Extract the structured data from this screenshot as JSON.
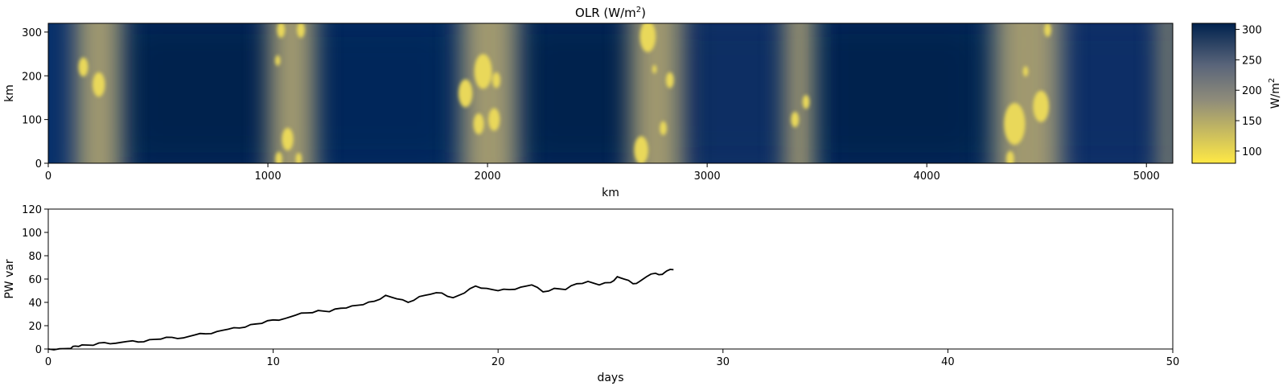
{
  "chart_data": [
    {
      "type": "heatmap",
      "title_main": "OLR (W/m",
      "title_sup": "2",
      "title_end": ")",
      "xlabel": "km",
      "ylabel": "km",
      "xlim": [
        0,
        5120
      ],
      "ylim": [
        0,
        320
      ],
      "xticks": [
        0,
        1000,
        2000,
        3000,
        4000,
        5000
      ],
      "yticks": [
        0,
        100,
        200,
        300
      ],
      "colormap": "cividis_r",
      "colorbar": {
        "label_main": "W/m",
        "label_sup": "2",
        "range": [
          80,
          310
        ],
        "ticks": [
          100,
          150,
          200,
          250,
          300
        ],
        "color_low": "#ffe945",
        "color_mid": "#7c7b78",
        "color_high": "#00224e"
      },
      "cloud_bands_km": [
        {
          "center": 230,
          "width": 230
        },
        {
          "center": 1110,
          "width": 230
        },
        {
          "center": 2010,
          "width": 280
        },
        {
          "center": 2770,
          "width": 260
        },
        {
          "center": 3420,
          "width": 140
        },
        {
          "center": 4460,
          "width": 330
        },
        {
          "center": 5100,
          "width": 80
        }
      ],
      "bright_cells": [
        {
          "x": 230,
          "y": 180,
          "r": 28
        },
        {
          "x": 160,
          "y": 220,
          "r": 22
        },
        {
          "x": 1060,
          "y": 305,
          "r": 18
        },
        {
          "x": 1150,
          "y": 305,
          "r": 18
        },
        {
          "x": 1045,
          "y": 235,
          "r": 12
        },
        {
          "x": 1090,
          "y": 55,
          "r": 26
        },
        {
          "x": 1050,
          "y": 10,
          "r": 16
        },
        {
          "x": 1140,
          "y": 10,
          "r": 14
        },
        {
          "x": 1980,
          "y": 210,
          "r": 40
        },
        {
          "x": 1900,
          "y": 160,
          "r": 32
        },
        {
          "x": 2040,
          "y": 190,
          "r": 18
        },
        {
          "x": 2030,
          "y": 100,
          "r": 26
        },
        {
          "x": 1960,
          "y": 90,
          "r": 24
        },
        {
          "x": 2730,
          "y": 290,
          "r": 36
        },
        {
          "x": 2830,
          "y": 190,
          "r": 18
        },
        {
          "x": 2760,
          "y": 215,
          "r": 10
        },
        {
          "x": 2700,
          "y": 30,
          "r": 32
        },
        {
          "x": 2800,
          "y": 80,
          "r": 16
        },
        {
          "x": 3400,
          "y": 100,
          "r": 18
        },
        {
          "x": 3450,
          "y": 140,
          "r": 16
        },
        {
          "x": 4450,
          "y": 210,
          "r": 12
        },
        {
          "x": 4550,
          "y": 305,
          "r": 16
        },
        {
          "x": 4400,
          "y": 90,
          "r": 48
        },
        {
          "x": 4520,
          "y": 130,
          "r": 36
        },
        {
          "x": 4380,
          "y": 10,
          "r": 18
        }
      ]
    },
    {
      "type": "line",
      "title": "",
      "xlabel": "days",
      "ylabel": "PW var",
      "xlim": [
        0,
        50
      ],
      "ylim": [
        0,
        120
      ],
      "xticks": [
        0,
        10,
        20,
        30,
        40,
        50
      ],
      "yticks": [
        0,
        20,
        40,
        60,
        80,
        100,
        120
      ],
      "color": "#000000",
      "series": [
        {
          "x": [
            0,
            0.5,
            1.0,
            1.2,
            1.5,
            2.0,
            2.5,
            3.0,
            3.5,
            4.0,
            4.5,
            5.0,
            5.5,
            6.0,
            6.5,
            7.0,
            7.5,
            8.0,
            8.5,
            9.0,
            9.5,
            10.0,
            10.5,
            11.0,
            11.5,
            12.0,
            12.5,
            13.0,
            13.5,
            14.0,
            14.5,
            15.0,
            15.5,
            16.0,
            16.5,
            17.0,
            17.5,
            18.0,
            18.5,
            19.0,
            19.5,
            20.0,
            20.5,
            21.0,
            21.5,
            22.0,
            22.5,
            23.0,
            23.5,
            24.0,
            24.5,
            25.0,
            25.3,
            25.6,
            26.0,
            26.3,
            26.6,
            27.0,
            27.3,
            27.5,
            27.8
          ],
          "y": [
            0,
            0.2,
            0.5,
            2.5,
            3.5,
            3.2,
            5.5,
            5.0,
            6.5,
            6.0,
            8.0,
            8.5,
            10.0,
            9.5,
            12.0,
            13.0,
            15.0,
            17.0,
            18.0,
            21.0,
            22.0,
            25.0,
            26.0,
            29.0,
            31.0,
            33.0,
            32.0,
            35.0,
            37.0,
            38.0,
            41.0,
            46.0,
            43.0,
            40.0,
            45.0,
            47.0,
            48.0,
            44.0,
            48.0,
            54.0,
            52.0,
            50.0,
            51.0,
            53.0,
            55.0,
            49.0,
            52.0,
            51.0,
            56.0,
            58.0,
            55.0,
            57.0,
            62.0,
            60.0,
            56.0,
            58.0,
            62.0,
            65.0,
            64.0,
            67.0,
            68.0
          ]
        }
      ]
    }
  ]
}
